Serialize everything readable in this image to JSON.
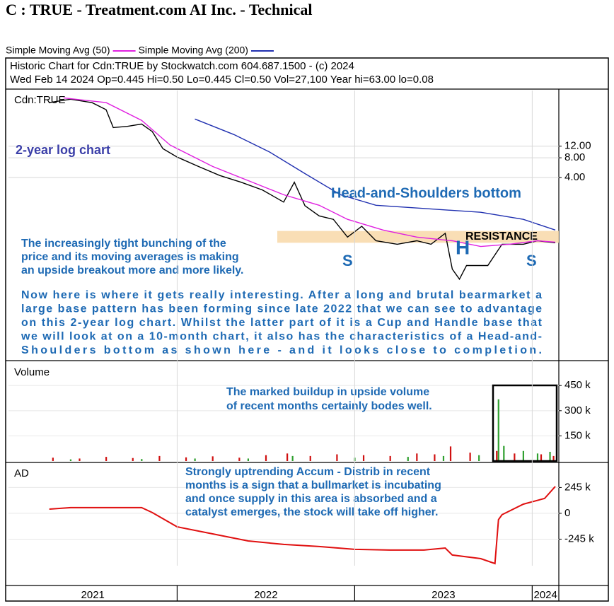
{
  "page": {
    "title": "C : TRUE - Treatment.com AI Inc. - Technical",
    "header": [
      "Historic Chart for Cdn:TRUE by Stockwatch.com 604.687.1500 - (c) 2024",
      "Wed Feb 14 2024  Op=0.445  Hi=0.50  Lo=0.445  Cl=0.50  Vol=27,100  Year hi=63.00  lo=0.08"
    ]
  },
  "chart_data": [
    {
      "type": "line",
      "label": "Cdn:TRUE",
      "log_scale": true,
      "grid": true,
      "xlim": [
        2021.05,
        2024.15
      ],
      "ylim": [
        0.007,
        84
      ],
      "yticks": [
        {
          "value": 4,
          "label": "4.00"
        },
        {
          "value": 8,
          "label": "8.00"
        },
        {
          "value": 12,
          "label": "12.00"
        }
      ],
      "series": [
        {
          "color": "#000000",
          "x": [
            2021.28,
            2021.4,
            2021.52,
            2021.6,
            2021.64,
            2021.72,
            2021.8,
            2021.86,
            2021.92,
            2022.0,
            2022.12,
            2022.24,
            2022.36,
            2022.48,
            2022.6,
            2022.66,
            2022.72,
            2022.8,
            2022.88,
            2022.96,
            2023.04,
            2023.12,
            2023.24,
            2023.35,
            2023.43,
            2023.51,
            2023.55,
            2023.59,
            2023.63,
            2023.75,
            2023.83,
            2023.95,
            2024.03,
            2024.13
          ],
          "values": [
            55,
            62,
            55,
            43,
            23,
            24,
            26,
            20,
            11,
            8.2,
            5.9,
            4.3,
            3.4,
            2.6,
            1.7,
            3.4,
            1.5,
            1.05,
            0.93,
            0.5,
            0.73,
            0.44,
            0.39,
            0.44,
            0.39,
            0.57,
            0.163,
            0.115,
            0.185,
            0.185,
            0.39,
            0.39,
            0.44,
            0.41
          ]
        },
        {
          "name": "Simple Moving Avg (50)",
          "color": "#e020e0",
          "x": [
            2021.36,
            2021.6,
            2021.8,
            2021.96,
            2022.2,
            2022.4,
            2022.6,
            2022.8,
            2022.96,
            2023.16,
            2023.35,
            2023.55,
            2023.71,
            2023.87,
            2024.03,
            2024.13
          ],
          "values": [
            65,
            55,
            29.6,
            12.5,
            5.9,
            3.6,
            2.2,
            1.52,
            0.93,
            0.64,
            0.5,
            0.44,
            0.36,
            0.39,
            0.44,
            0.42
          ]
        },
        {
          "name": "Simple Moving Avg (200)",
          "color": "#2030b0",
          "x": [
            2022.1,
            2022.32,
            2022.52,
            2022.72,
            2022.92,
            2023.12,
            2023.39,
            2023.71,
            2023.95,
            2024.13
          ],
          "values": [
            31,
            18,
            9.8,
            4.6,
            2.2,
            1.52,
            1.36,
            1.19,
            0.93,
            0.64
          ]
        }
      ],
      "resistance": {
        "label": "RESISTANCE",
        "range": [
          0.41,
          0.62
        ],
        "color": "#f8d8a8"
      },
      "annotations": [
        "2-year log chart",
        "Head-and-Shoulders bottom",
        "S",
        "H",
        "S"
      ],
      "notes": [
        [
          "The increasingly tight bunching of the",
          "price and its moving averages is making",
          "an upside breakout more and more likely."
        ],
        [
          "Now here is where it gets really interesting. After a long and brutal bearmarket a",
          "large base pattern has been forming since late 2022 that we can see to advantage",
          "on this 2-year log chart. Whilst the latter part of it is a Cup and Handle base that",
          "we will look at on a 10-month chart, it also has the characteristics of a Head-and-",
          "Shoulders bottom as shown here - and it looks close to completion."
        ]
      ]
    },
    {
      "type": "bar",
      "label": "Volume",
      "xlim": [
        2021.05,
        2024.15
      ],
      "ylim": [
        0,
        590000
      ],
      "yticks": [
        {
          "value": 150000,
          "label": "150 k"
        },
        {
          "value": 300000,
          "label": "300 k"
        },
        {
          "value": 450000,
          "label": "450 k"
        }
      ],
      "series": [
        {
          "color": "#d01010",
          "x": [
            2021.3,
            2021.45,
            2021.6,
            2021.75,
            2021.9,
            2022.05,
            2022.2,
            2022.35,
            2022.5,
            2022.62,
            2022.75,
            2022.9,
            2023.05,
            2023.2,
            2023.35,
            2023.45,
            2023.54,
            2023.65,
            2023.8,
            2023.9,
            2024.05,
            2024.12
          ],
          "values": [
            20000,
            15000,
            25000,
            18000,
            30000,
            22000,
            28000,
            20000,
            35000,
            45000,
            30000,
            40000,
            35000,
            30000,
            45000,
            40000,
            87000,
            50000,
            60000,
            45000,
            40000,
            30000
          ]
        },
        {
          "color": "#30a030",
          "x": [
            2021.4,
            2021.8,
            2022.1,
            2022.4,
            2022.65,
            2023.0,
            2023.3,
            2023.5,
            2023.7,
            2023.81,
            2023.84,
            2023.95,
            2024.03,
            2024.1
          ],
          "values": [
            10000,
            12000,
            15000,
            15000,
            30000,
            20000,
            25000,
            30000,
            35000,
            368000,
            90000,
            60000,
            45000,
            55000
          ]
        }
      ],
      "notes": [
        [
          "The marked buildup in upside volume",
          "of recent months certainly bodes well."
        ]
      ]
    },
    {
      "type": "line",
      "label": "AD",
      "xlim": [
        2021.05,
        2024.15
      ],
      "ylim": [
        -497000,
        476000
      ],
      "xticks": [
        2021,
        2022,
        2023,
        2024
      ],
      "yticks": [
        {
          "value": -245000,
          "label": "-245 k"
        },
        0,
        {
          "value": 245000,
          "label": "245 k"
        }
      ],
      "series": [
        {
          "color": "#e01010",
          "x": [
            2021.28,
            2021.4,
            2021.8,
            2021.86,
            2022.0,
            2022.2,
            2022.4,
            2022.6,
            2022.8,
            2023.0,
            2023.2,
            2023.39,
            2023.51,
            2023.55,
            2023.71,
            2023.79,
            2023.81,
            2023.83,
            2023.95,
            2024.07,
            2024.13
          ],
          "values": [
            40000,
            54000,
            54000,
            7000,
            -128000,
            -195000,
            -262000,
            -295000,
            -315000,
            -342000,
            -349000,
            -349000,
            -329000,
            -396000,
            -430000,
            -477000,
            -60000,
            -13000,
            87000,
            141000,
            255000
          ]
        }
      ],
      "notes": [
        [
          "Strongly uptrending Accum - Distrib in recent",
          "months is a sign that a bullmarket is incubating",
          "and once supply in this area is absorbed and a",
          "catalyst emerges, the stock will take off higher."
        ]
      ]
    }
  ]
}
